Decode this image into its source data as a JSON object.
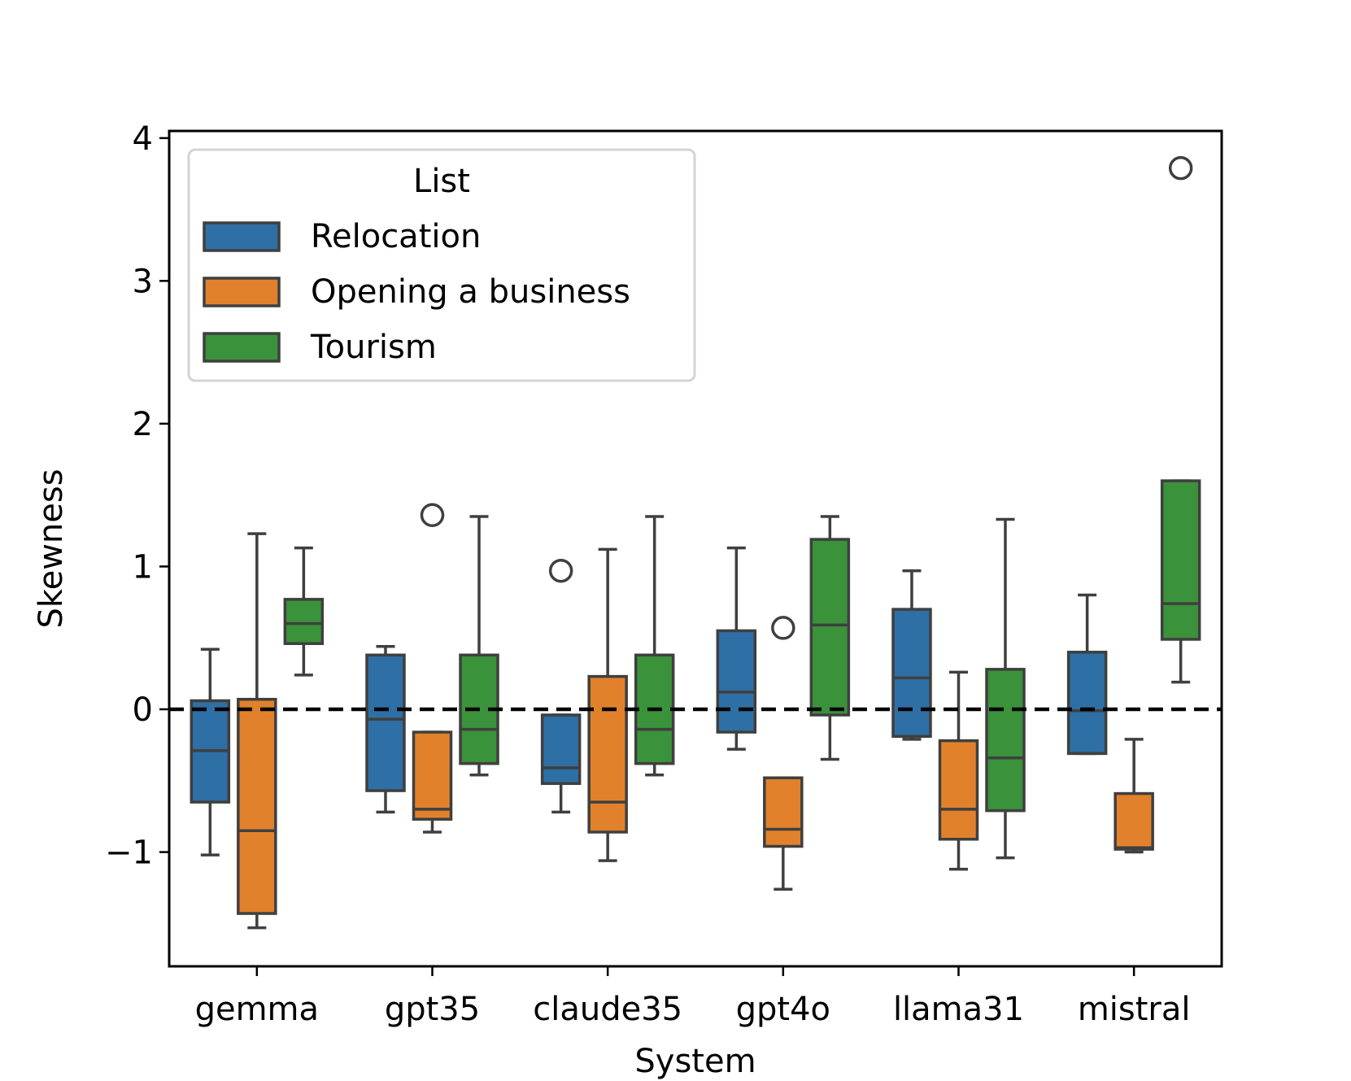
{
  "chart_data": {
    "type": "box",
    "title": "",
    "xlabel": "System",
    "ylabel": "Skewness",
    "ylim": [
      -1.8,
      4.05
    ],
    "yticks": [
      -1,
      0,
      1,
      2,
      3,
      4
    ],
    "ytick_labels": [
      "−1",
      "0",
      "1",
      "2",
      "3",
      "4"
    ],
    "categories": [
      "gemma",
      "gpt35",
      "claude35",
      "gpt4o",
      "llama31",
      "mistral"
    ],
    "reference_line": {
      "y": 0,
      "style": "dashed",
      "color": "#000000"
    },
    "legend": {
      "title": "List",
      "position": "upper-left",
      "entries": [
        "Relocation",
        "Opening a business",
        "Tourism"
      ]
    },
    "series": [
      {
        "name": "Relocation",
        "color": "#2e6fa5",
        "boxes": [
          {
            "whislo": -1.02,
            "q1": -0.65,
            "med": -0.29,
            "q3": 0.06,
            "whishi": 0.42,
            "fliers": []
          },
          {
            "whislo": -0.72,
            "q1": -0.57,
            "med": -0.07,
            "q3": 0.38,
            "whishi": 0.44,
            "fliers": []
          },
          {
            "whislo": -0.72,
            "q1": -0.52,
            "med": -0.41,
            "q3": -0.04,
            "whishi": -0.04,
            "fliers": [
              0.97
            ]
          },
          {
            "whislo": -0.28,
            "q1": -0.16,
            "med": 0.12,
            "q3": 0.55,
            "whishi": 1.13,
            "fliers": []
          },
          {
            "whislo": -0.21,
            "q1": -0.19,
            "med": 0.22,
            "q3": 0.7,
            "whishi": 0.97,
            "fliers": []
          },
          {
            "whislo": -0.31,
            "q1": -0.31,
            "med": -0.01,
            "q3": 0.4,
            "whishi": 0.8,
            "fliers": []
          }
        ]
      },
      {
        "name": "Opening a business",
        "color": "#e1812c",
        "boxes": [
          {
            "whislo": -1.53,
            "q1": -1.43,
            "med": -0.85,
            "q3": 0.07,
            "whishi": 1.23,
            "fliers": []
          },
          {
            "whislo": -0.86,
            "q1": -0.77,
            "med": -0.7,
            "q3": -0.16,
            "whishi": -0.16,
            "fliers": [
              1.36
            ]
          },
          {
            "whislo": -1.06,
            "q1": -0.86,
            "med": -0.65,
            "q3": 0.23,
            "whishi": 1.12,
            "fliers": []
          },
          {
            "whislo": -1.26,
            "q1": -0.96,
            "med": -0.84,
            "q3": -0.48,
            "whishi": -0.48,
            "fliers": [
              0.57
            ]
          },
          {
            "whislo": -1.12,
            "q1": -0.91,
            "med": -0.7,
            "q3": -0.22,
            "whishi": 0.26,
            "fliers": []
          },
          {
            "whislo": -1.0,
            "q1": -0.98,
            "med": -0.97,
            "q3": -0.59,
            "whishi": -0.21,
            "fliers": []
          }
        ]
      },
      {
        "name": "Tourism",
        "color": "#3a923a",
        "boxes": [
          {
            "whislo": 0.24,
            "q1": 0.46,
            "med": 0.6,
            "q3": 0.77,
            "whishi": 1.13,
            "fliers": []
          },
          {
            "whislo": -0.46,
            "q1": -0.38,
            "med": -0.14,
            "q3": 0.38,
            "whishi": 1.35,
            "fliers": []
          },
          {
            "whislo": -0.46,
            "q1": -0.38,
            "med": -0.14,
            "q3": 0.38,
            "whishi": 1.35,
            "fliers": []
          },
          {
            "whislo": -0.35,
            "q1": -0.04,
            "med": 0.59,
            "q3": 1.19,
            "whishi": 1.35,
            "fliers": []
          },
          {
            "whislo": -1.04,
            "q1": -0.71,
            "med": -0.34,
            "q3": 0.28,
            "whishi": 1.33,
            "fliers": []
          },
          {
            "whislo": 0.19,
            "q1": 0.49,
            "med": 0.74,
            "q3": 1.6,
            "whishi": 1.6,
            "fliers": [
              3.79
            ]
          }
        ]
      }
    ]
  }
}
